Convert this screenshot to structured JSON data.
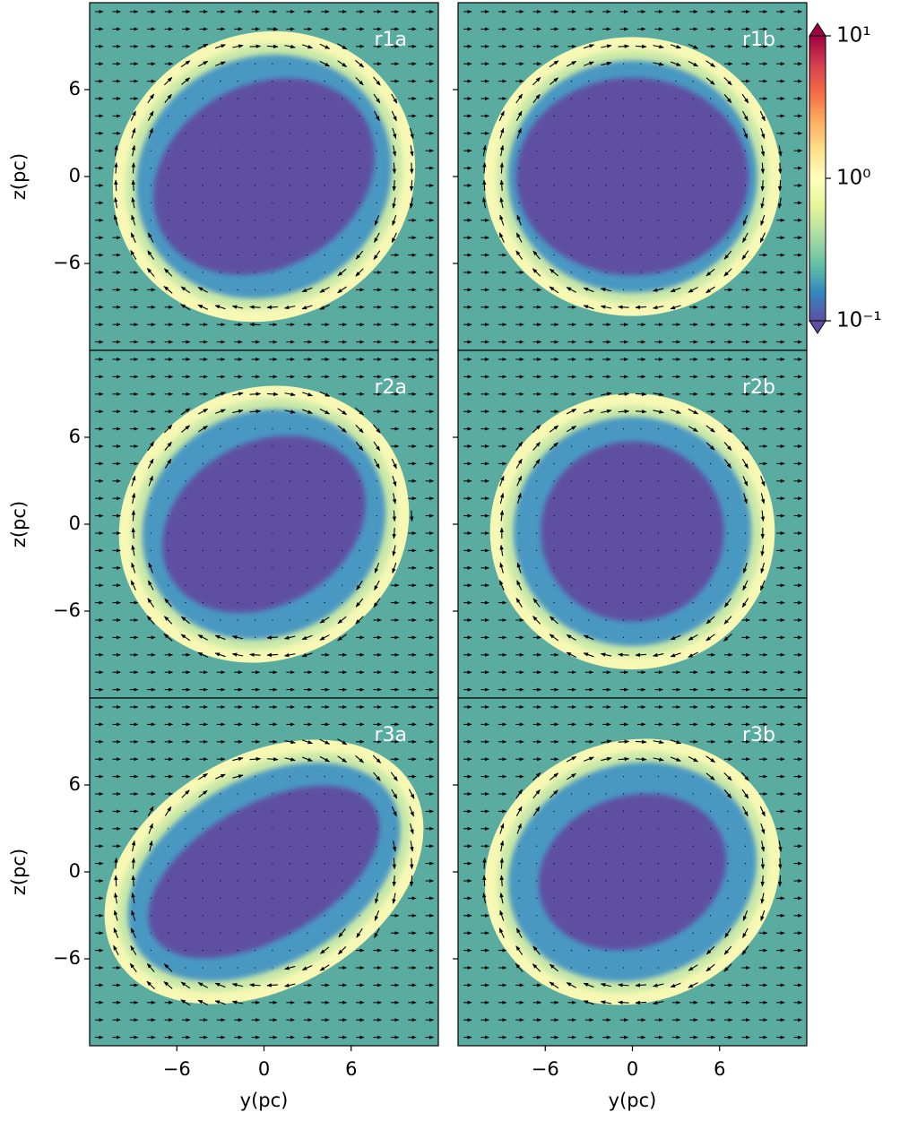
{
  "chart_data": [
    {
      "type": "image",
      "label": "r1a",
      "ylabel": "z(pc)",
      "xlim": [
        -12,
        12
      ],
      "ylim": [
        -12,
        12
      ],
      "ytick_labels": true,
      "yticks": [
        {
          "value": -6,
          "label": "−6"
        },
        0,
        6
      ]
    },
    {
      "type": "image",
      "label": "r1b",
      "xlim": [
        -12,
        12
      ],
      "ylim": [
        -12,
        12
      ],
      "ytick_labels": false,
      "yticks": [
        -6,
        0,
        6
      ]
    },
    {
      "type": "image",
      "label": "r2a",
      "ylabel": "z(pc)",
      "xlim": [
        -12,
        12
      ],
      "ylim": [
        -12,
        12
      ],
      "ytick_labels": true,
      "yticks": [
        {
          "value": -6,
          "label": "−6"
        },
        0,
        6
      ]
    },
    {
      "type": "image",
      "label": "r2b",
      "xlim": [
        -12,
        12
      ],
      "ylim": [
        -12,
        12
      ],
      "ytick_labels": false,
      "yticks": [
        -6,
        0,
        6
      ]
    },
    {
      "type": "image",
      "label": "r3a",
      "ylabel": "z(pc)",
      "xlabel": "y(pc)",
      "xlim": [
        -12,
        12
      ],
      "ylim": [
        -12,
        12
      ],
      "ytick_labels": true,
      "yticks": [
        {
          "value": -6,
          "label": "−6"
        },
        0,
        6
      ],
      "xticks": [
        {
          "value": -6,
          "label": "−6"
        },
        0,
        6
      ]
    },
    {
      "type": "image",
      "label": "r3b",
      "xlabel": "y(pc)",
      "xlim": [
        -12,
        12
      ],
      "ylim": [
        -12,
        12
      ],
      "ytick_labels": false,
      "yticks": [
        -6,
        0,
        6
      ],
      "xticks": [
        {
          "value": -6,
          "label": "−6"
        },
        0,
        6
      ]
    },
    {
      "type": "colorbar",
      "log_scale": true,
      "colormap": [
        "#5e4fa2",
        "#3288bd",
        "#66c2a5",
        "#abdda4",
        "#e6f598",
        "#ffffbf",
        "#fee08b",
        "#fdae61",
        "#f46d43",
        "#d53e4f",
        "#9e0142"
      ],
      "ylim": [
        0.1,
        10
      ],
      "yticks": [
        {
          "value": 0.1,
          "label": "10⁻¹"
        },
        {
          "value": 1,
          "label": "10⁰"
        },
        {
          "value": 10,
          "label": "10¹"
        }
      ]
    }
  ]
}
